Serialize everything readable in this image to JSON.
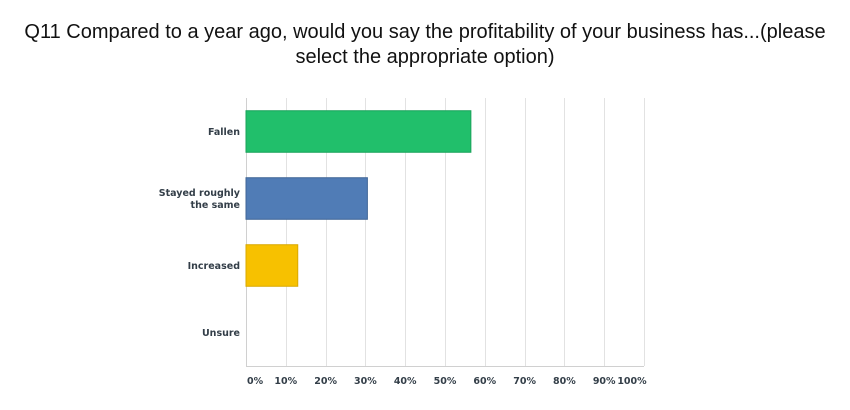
{
  "chart_data": {
    "type": "bar",
    "orientation": "horizontal",
    "title_lines": [
      "Q11 Compared to a year ago, would you say the profitability of your business has...(please",
      "select the appropriate option)"
    ],
    "categories": [
      [
        "Fallen"
      ],
      [
        "Stayed roughly",
        "the same"
      ],
      [
        "Increased"
      ],
      [
        "Unsure"
      ]
    ],
    "values": [
      56.5,
      30.5,
      13,
      0
    ],
    "value_unit": "%",
    "xlim": [
      0,
      100
    ],
    "xticks": [
      "0%",
      "10%",
      "20%",
      "30%",
      "40%",
      "50%",
      "60%",
      "70%",
      "80%",
      "90%",
      "100%"
    ],
    "grid": "vertical",
    "colors": [
      "#21bf6b",
      "#507cb6",
      "#f7c100",
      "#a0a0a0"
    ],
    "bar_border_colors": [
      "#1aa35a",
      "#3f6596",
      "#d9a900",
      "#888888"
    ],
    "grid_color": "#e2e2e2",
    "axis_color": "#d0d0d0"
  }
}
